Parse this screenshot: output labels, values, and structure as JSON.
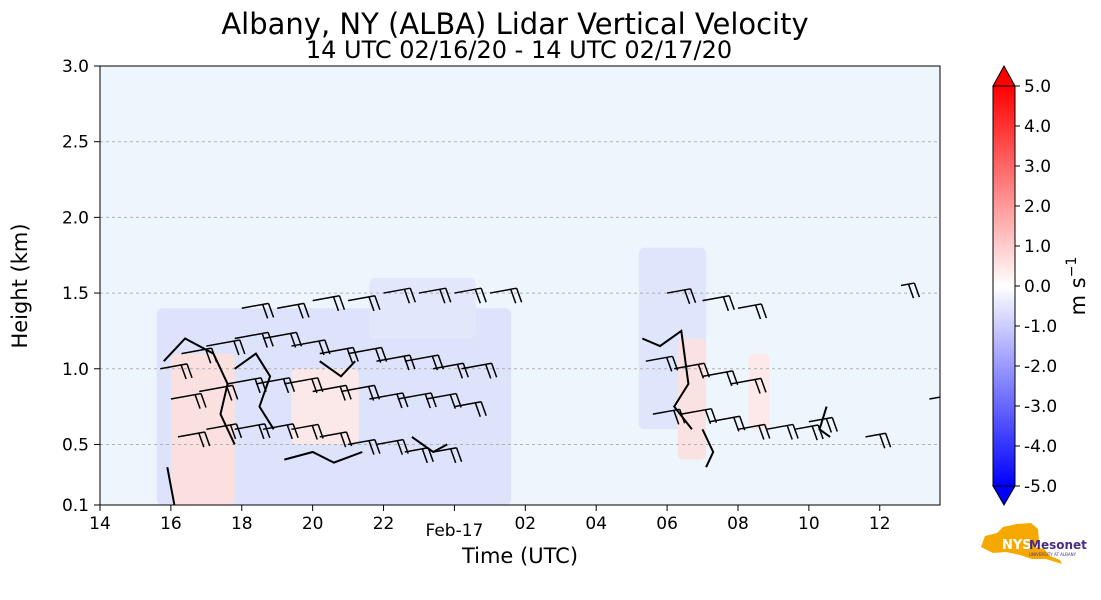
{
  "chart_data": {
    "type": "heatmap",
    "title": "Albany, NY (ALBA) Lidar Vertical Velocity",
    "subtitle": "14 UTC 02/16/20 - 14 UTC 02/17/20",
    "xlabel": "Time (UTC)",
    "ylabel": "Height (km)",
    "x_ticks": [
      {
        "hours": 0,
        "label": "14"
      },
      {
        "hours": 2,
        "label": "16"
      },
      {
        "hours": 4,
        "label": "18"
      },
      {
        "hours": 6,
        "label": "20"
      },
      {
        "hours": 8,
        "label": "22"
      },
      {
        "hours": 10,
        "label": ""
      },
      {
        "hours": 12,
        "label": "02"
      },
      {
        "hours": 14,
        "label": "04"
      },
      {
        "hours": 16,
        "label": "06"
      },
      {
        "hours": 18,
        "label": "08"
      },
      {
        "hours": 20,
        "label": "10"
      },
      {
        "hours": 22,
        "label": "12"
      }
    ],
    "date_label": {
      "hours": 10,
      "label": "Feb-17"
    },
    "xlim_hours": [
      0,
      23.7
    ],
    "y_ticks": [
      {
        "value": 0.1,
        "label": "0.1"
      },
      {
        "value": 0.5,
        "label": "0.5"
      },
      {
        "value": 1.0,
        "label": "1.0"
      },
      {
        "value": 1.5,
        "label": "1.5"
      },
      {
        "value": 2.0,
        "label": "2.0"
      },
      {
        "value": 2.5,
        "label": "2.5"
      },
      {
        "value": 3.0,
        "label": "3.0"
      }
    ],
    "ylim": [
      0.1,
      3.0
    ],
    "grid_y": [
      0.5,
      1.0,
      1.5,
      2.0,
      2.5
    ],
    "background_color": "#eef6fd",
    "colorbar": {
      "label": "m s$^{-1}$",
      "label_base": "m s",
      "label_exp": "−1",
      "range": [
        -5.0,
        5.0
      ],
      "ticks": [
        "5.0",
        "4.0",
        "3.0",
        "2.0",
        "1.0",
        "0.0",
        "-1.0",
        "-2.0",
        "-3.0",
        "-4.0",
        "-5.0"
      ],
      "colors": [
        "#0000ff",
        "#ffffff",
        "#ff0000"
      ]
    },
    "logo": {
      "text": "NYS Mesonet",
      "subtext": "UNIVERSITY AT ALBANY",
      "colors": [
        "#f5a800",
        "#4b2e83"
      ]
    },
    "velocity_regions": [
      {
        "t0": 1.6,
        "t1": 11.6,
        "z0": 0.1,
        "z1": 1.4,
        "color": "#dde3fb"
      },
      {
        "t0": 7.6,
        "t1": 10.6,
        "z0": 1.2,
        "z1": 1.6,
        "color": "#e3e7fc"
      },
      {
        "t0": 2.0,
        "t1": 3.8,
        "z0": 0.1,
        "z1": 1.1,
        "color": "#fbe0e0"
      },
      {
        "t0": 5.4,
        "t1": 7.3,
        "z0": 0.5,
        "z1": 1.0,
        "color": "#fbe8e8"
      },
      {
        "t0": 15.2,
        "t1": 17.1,
        "z0": 0.6,
        "z1": 1.8,
        "color": "#dfe5fb"
      },
      {
        "t0": 16.3,
        "t1": 17.1,
        "z0": 0.4,
        "z1": 1.2,
        "color": "#fbe2e2"
      },
      {
        "t0": 18.3,
        "t1": 18.9,
        "z0": 0.6,
        "z1": 1.1,
        "color": "#fde9e9"
      }
    ],
    "barbs": [
      {
        "t": 1.7,
        "z": 1.0,
        "len": 0.8
      },
      {
        "t": 2.3,
        "z": 1.1,
        "len": 0.9
      },
      {
        "t": 3.0,
        "z": 1.15,
        "len": 1.0
      },
      {
        "t": 3.8,
        "z": 1.2,
        "len": 1.0
      },
      {
        "t": 4.6,
        "z": 1.2,
        "len": 1.0
      },
      {
        "t": 5.4,
        "z": 1.15,
        "len": 1.0
      },
      {
        "t": 6.2,
        "z": 1.1,
        "len": 1.0
      },
      {
        "t": 7.0,
        "z": 1.1,
        "len": 1.0
      },
      {
        "t": 7.8,
        "z": 1.05,
        "len": 1.0
      },
      {
        "t": 8.6,
        "z": 1.05,
        "len": 1.0
      },
      {
        "t": 9.4,
        "z": 1.0,
        "len": 0.9
      },
      {
        "t": 10.2,
        "z": 1.0,
        "len": 0.9
      },
      {
        "t": 2.0,
        "z": 0.8,
        "len": 0.9
      },
      {
        "t": 2.8,
        "z": 0.85,
        "len": 1.0
      },
      {
        "t": 3.6,
        "z": 0.9,
        "len": 1.0
      },
      {
        "t": 4.4,
        "z": 0.9,
        "len": 1.0
      },
      {
        "t": 5.2,
        "z": 0.9,
        "len": 1.0
      },
      {
        "t": 6.0,
        "z": 0.85,
        "len": 1.0
      },
      {
        "t": 6.8,
        "z": 0.85,
        "len": 1.0
      },
      {
        "t": 7.6,
        "z": 0.8,
        "len": 1.0
      },
      {
        "t": 8.4,
        "z": 0.8,
        "len": 1.0
      },
      {
        "t": 9.2,
        "z": 0.8,
        "len": 0.9
      },
      {
        "t": 10.0,
        "z": 0.75,
        "len": 0.8
      },
      {
        "t": 2.2,
        "z": 0.55,
        "len": 0.8
      },
      {
        "t": 3.0,
        "z": 0.6,
        "len": 0.9
      },
      {
        "t": 3.8,
        "z": 0.6,
        "len": 0.9
      },
      {
        "t": 4.6,
        "z": 0.6,
        "len": 0.9
      },
      {
        "t": 5.4,
        "z": 0.6,
        "len": 0.8
      },
      {
        "t": 6.2,
        "z": 0.55,
        "len": 0.8
      },
      {
        "t": 7.0,
        "z": 0.5,
        "len": 0.8
      },
      {
        "t": 7.8,
        "z": 0.5,
        "len": 0.8
      },
      {
        "t": 8.6,
        "z": 0.45,
        "len": 0.7
      },
      {
        "t": 9.4,
        "z": 0.45,
        "len": 0.7
      },
      {
        "t": 4.0,
        "z": 1.4,
        "len": 0.8
      },
      {
        "t": 5.0,
        "z": 1.4,
        "len": 0.8
      },
      {
        "t": 6.0,
        "z": 1.45,
        "len": 0.8
      },
      {
        "t": 7.0,
        "z": 1.45,
        "len": 0.8
      },
      {
        "t": 8.0,
        "z": 1.5,
        "len": 0.8
      },
      {
        "t": 9.0,
        "z": 1.5,
        "len": 0.8
      },
      {
        "t": 10.0,
        "z": 1.5,
        "len": 0.8
      },
      {
        "t": 11.0,
        "z": 1.5,
        "len": 0.8
      },
      {
        "t": 15.4,
        "z": 1.05,
        "len": 0.8
      },
      {
        "t": 16.2,
        "z": 1.0,
        "len": 0.9
      },
      {
        "t": 17.0,
        "z": 0.95,
        "len": 0.9
      },
      {
        "t": 17.8,
        "z": 0.9,
        "len": 0.9
      },
      {
        "t": 15.6,
        "z": 0.7,
        "len": 0.8
      },
      {
        "t": 16.4,
        "z": 0.7,
        "len": 0.9
      },
      {
        "t": 17.2,
        "z": 0.65,
        "len": 0.9
      },
      {
        "t": 18.0,
        "z": 0.6,
        "len": 0.8
      },
      {
        "t": 18.8,
        "z": 0.6,
        "len": 0.8
      },
      {
        "t": 19.6,
        "z": 0.6,
        "len": 0.7
      },
      {
        "t": 16.0,
        "z": 1.5,
        "len": 0.7
      },
      {
        "t": 17.0,
        "z": 1.45,
        "len": 0.8
      },
      {
        "t": 18.0,
        "z": 1.4,
        "len": 0.7
      },
      {
        "t": 20.0,
        "z": 0.65,
        "len": 0.7
      },
      {
        "t": 21.6,
        "z": 0.55,
        "len": 0.6
      },
      {
        "t": 22.6,
        "z": 1.55,
        "len": 0.4
      },
      {
        "t": 23.4,
        "z": 0.8,
        "len": 0.5
      }
    ],
    "contours": [
      {
        "points": [
          [
            1.8,
            1.05
          ],
          [
            2.4,
            1.2
          ],
          [
            3.2,
            1.1
          ],
          [
            3.6,
            0.9
          ],
          [
            3.4,
            0.7
          ],
          [
            3.8,
            0.5
          ]
        ]
      },
      {
        "points": [
          [
            3.8,
            1.0
          ],
          [
            4.4,
            1.1
          ],
          [
            4.8,
            0.95
          ],
          [
            4.5,
            0.75
          ],
          [
            4.9,
            0.6
          ]
        ]
      },
      {
        "points": [
          [
            6.2,
            1.05
          ],
          [
            6.8,
            0.95
          ],
          [
            7.2,
            1.05
          ]
        ]
      },
      {
        "points": [
          [
            5.2,
            0.4
          ],
          [
            6.0,
            0.45
          ],
          [
            6.6,
            0.38
          ],
          [
            7.4,
            0.45
          ]
        ]
      },
      {
        "points": [
          [
            8.8,
            0.55
          ],
          [
            9.4,
            0.45
          ],
          [
            9.8,
            0.5
          ]
        ]
      },
      {
        "points": [
          [
            1.9,
            0.35
          ],
          [
            2.1,
            0.1
          ]
        ]
      },
      {
        "points": [
          [
            15.3,
            1.2
          ],
          [
            15.8,
            1.15
          ],
          [
            16.4,
            1.25
          ],
          [
            16.6,
            0.9
          ],
          [
            16.2,
            0.75
          ],
          [
            16.7,
            0.6
          ]
        ]
      },
      {
        "points": [
          [
            17.0,
            0.6
          ],
          [
            17.3,
            0.45
          ],
          [
            17.1,
            0.35
          ]
        ]
      },
      {
        "points": [
          [
            20.5,
            0.75
          ],
          [
            20.3,
            0.6
          ],
          [
            20.6,
            0.55
          ]
        ]
      }
    ]
  }
}
